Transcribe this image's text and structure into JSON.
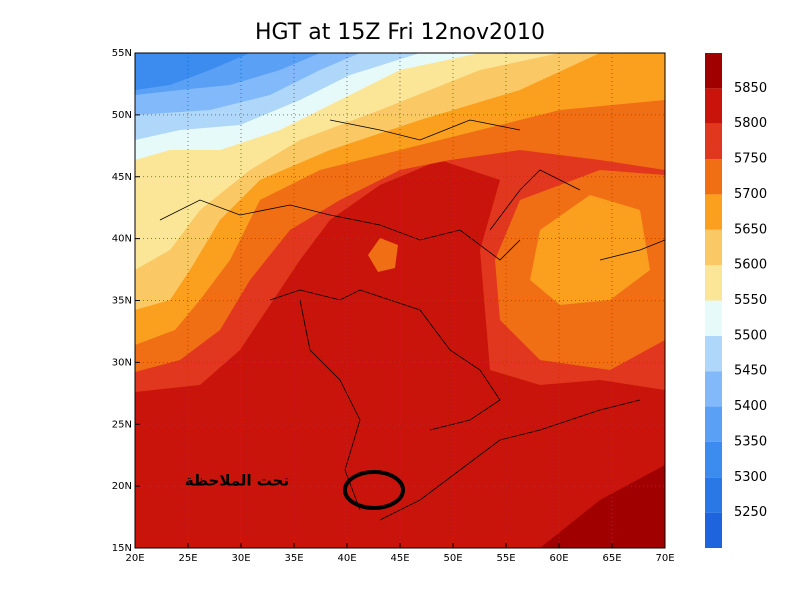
{
  "title": "HGT at 15Z Fri 12nov2010",
  "lon_ticks": [
    "20E",
    "25E",
    "30E",
    "35E",
    "40E",
    "45E",
    "50E",
    "55E",
    "60E",
    "65E",
    "70E"
  ],
  "lat_ticks": [
    "15N",
    "20N",
    "25N",
    "30N",
    "35N",
    "40N",
    "45N",
    "50N",
    "55N"
  ],
  "colorbar": {
    "levels": [
      5250,
      5300,
      5350,
      5400,
      5450,
      5500,
      5550,
      5600,
      5650,
      5700,
      5750,
      5800,
      5850
    ],
    "colors": [
      "#1e64dc",
      "#2a78e6",
      "#3c8cf0",
      "#5aa0f5",
      "#82b9fa",
      "#afd7fa",
      "#e6fafa",
      "#fae696",
      "#fac864",
      "#fa9f1e",
      "#f06e14",
      "#e1371e",
      "#c8140a",
      "#a00000"
    ]
  },
  "annotation": "تحت الملاحظة"
}
